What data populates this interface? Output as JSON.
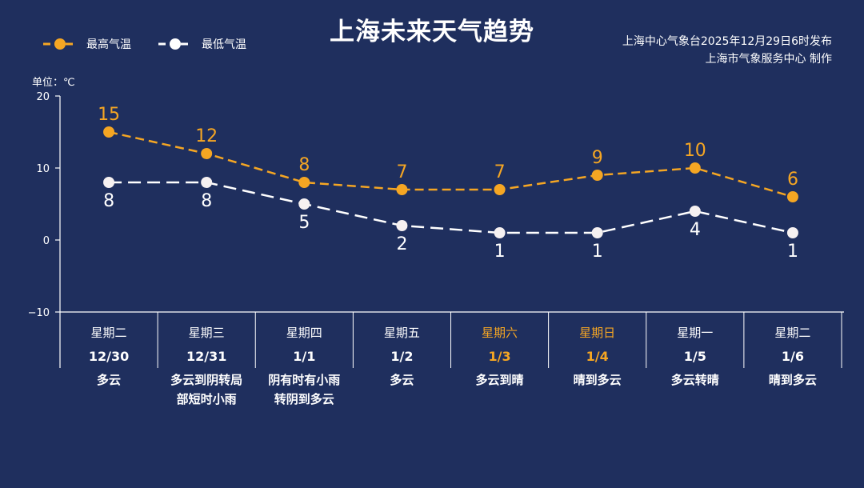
{
  "title": "上海未来天气趋势",
  "issuer_line1": "上海中心气象台2025年12月29日6时发布",
  "issuer_line2": "上海市气象服务中心  制作",
  "unit_label": "单位：℃",
  "colors": {
    "background": "#1f2f5e",
    "high": "#f5a623",
    "low": "#ffffff",
    "weekend": "#f5a623"
  },
  "chart_data": {
    "type": "line",
    "ylim": [
      -10,
      20
    ],
    "yticks": [
      -10,
      0,
      10,
      20
    ],
    "grid": false,
    "legend_position": "top-left",
    "legend": [
      "最高气温",
      "最低气温"
    ],
    "weekdays": [
      "星期二",
      "星期三",
      "星期四",
      "星期五",
      "星期六",
      "星期日",
      "星期一",
      "星期二"
    ],
    "weekend_flags": [
      false,
      false,
      false,
      false,
      true,
      true,
      false,
      false
    ],
    "categories": [
      "12/30",
      "12/31",
      "1/1",
      "1/2",
      "1/3",
      "1/4",
      "1/5",
      "1/6"
    ],
    "weather": [
      "多云",
      "多云到阴转局部短时小雨",
      "阴有时有小雨转阴到多云",
      "多云",
      "多云到晴",
      "晴到多云",
      "多云转晴",
      "晴到多云"
    ],
    "weather_lines": [
      [
        "多云"
      ],
      [
        "多云到阴转局",
        "部短时小雨"
      ],
      [
        "阴有时有小雨",
        "转阴到多云"
      ],
      [
        "多云"
      ],
      [
        "多云到晴"
      ],
      [
        "晴到多云"
      ],
      [
        "多云转晴"
      ],
      [
        "晴到多云"
      ]
    ],
    "series": [
      {
        "name": "最高气温",
        "values": [
          15,
          12,
          8,
          7,
          7,
          9,
          10,
          6
        ]
      },
      {
        "name": "最低气温",
        "values": [
          8,
          8,
          5,
          2,
          1,
          1,
          4,
          1
        ]
      }
    ]
  }
}
